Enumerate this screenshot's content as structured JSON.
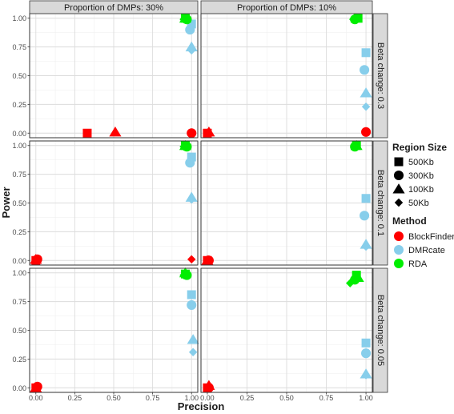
{
  "chart_data": {
    "type": "scatter",
    "facet_columns": [
      "Proportion of DMPs: 30%",
      "Proportion of DMPs: 10%"
    ],
    "facet_rows": [
      "Beta change: 0.3",
      "Beta change: 0.1",
      "Beta change: 0.05"
    ],
    "xlabel": "Precision",
    "ylabel": "Power",
    "xlim": [
      -0.04,
      1.04
    ],
    "ylim": [
      -0.04,
      1.04
    ],
    "x_ticks": [
      "0.00",
      "0.25",
      "0.50",
      "0.75",
      "1.00"
    ],
    "y_ticks": [
      "0.00",
      "0.25",
      "0.50",
      "0.75",
      "1.00"
    ],
    "grid": true,
    "legend_position": "right",
    "legend": {
      "size_title": "Region Size",
      "sizes": [
        {
          "label": "500Kb",
          "shape": "square"
        },
        {
          "label": "300Kb",
          "shape": "circle"
        },
        {
          "label": "100Kb",
          "shape": "triangle"
        },
        {
          "label": "50Kb",
          "shape": "diamond"
        }
      ],
      "method_title": "Method",
      "methods": [
        {
          "label": "BlockFinder",
          "color": "#ff0000"
        },
        {
          "label": "DMRcate",
          "color": "#87ceeb"
        },
        {
          "label": "RDA",
          "color": "#00ee00"
        }
      ]
    },
    "points": [
      {
        "panel": [
          0,
          0
        ],
        "method": "BlockFinder",
        "size": "500Kb",
        "x": 0.33,
        "y": 0.0
      },
      {
        "panel": [
          0,
          0
        ],
        "method": "BlockFinder",
        "size": "100Kb",
        "x": 0.51,
        "y": 0.01
      },
      {
        "panel": [
          0,
          0
        ],
        "method": "BlockFinder",
        "size": "300Kb",
        "x": 1.0,
        "y": 0.0
      },
      {
        "panel": [
          0,
          0
        ],
        "method": "BlockFinder",
        "size": "50Kb",
        "x": 1.0,
        "y": 0.0
      },
      {
        "panel": [
          0,
          0
        ],
        "method": "DMRcate",
        "size": "500Kb",
        "x": 1.0,
        "y": 0.95
      },
      {
        "panel": [
          0,
          0
        ],
        "method": "DMRcate",
        "size": "300Kb",
        "x": 0.99,
        "y": 0.9
      },
      {
        "panel": [
          0,
          0
        ],
        "method": "DMRcate",
        "size": "100Kb",
        "x": 1.0,
        "y": 0.75
      },
      {
        "panel": [
          0,
          0
        ],
        "method": "DMRcate",
        "size": "50Kb",
        "x": 1.0,
        "y": 0.72
      },
      {
        "panel": [
          0,
          0
        ],
        "method": "RDA",
        "size": "500Kb",
        "x": 0.96,
        "y": 1.0
      },
      {
        "panel": [
          0,
          0
        ],
        "method": "RDA",
        "size": "300Kb",
        "x": 0.97,
        "y": 0.99
      },
      {
        "panel": [
          0,
          0
        ],
        "method": "RDA",
        "size": "100Kb",
        "x": 0.96,
        "y": 1.0
      },
      {
        "panel": [
          0,
          0
        ],
        "method": "RDA",
        "size": "50Kb",
        "x": 0.95,
        "y": 0.99
      },
      {
        "panel": [
          0,
          1
        ],
        "method": "BlockFinder",
        "size": "500Kb",
        "x": 0.0,
        "y": 0.0
      },
      {
        "panel": [
          0,
          1
        ],
        "method": "BlockFinder",
        "size": "100Kb",
        "x": 0.01,
        "y": 0.01
      },
      {
        "panel": [
          0,
          1
        ],
        "method": "BlockFinder",
        "size": "50Kb",
        "x": 0.0,
        "y": 0.0
      },
      {
        "panel": [
          0,
          1
        ],
        "method": "BlockFinder",
        "size": "300Kb",
        "x": 1.0,
        "y": 0.01
      },
      {
        "panel": [
          0,
          1
        ],
        "method": "DMRcate",
        "size": "500Kb",
        "x": 1.0,
        "y": 0.7
      },
      {
        "panel": [
          0,
          1
        ],
        "method": "DMRcate",
        "size": "300Kb",
        "x": 0.99,
        "y": 0.55
      },
      {
        "panel": [
          0,
          1
        ],
        "method": "DMRcate",
        "size": "100Kb",
        "x": 1.0,
        "y": 0.35
      },
      {
        "panel": [
          0,
          1
        ],
        "method": "DMRcate",
        "size": "50Kb",
        "x": 1.0,
        "y": 0.23
      },
      {
        "panel": [
          0,
          1
        ],
        "method": "RDA",
        "size": "500Kb",
        "x": 0.95,
        "y": 1.0
      },
      {
        "panel": [
          0,
          1
        ],
        "method": "RDA",
        "size": "300Kb",
        "x": 0.93,
        "y": 0.99
      },
      {
        "panel": [
          0,
          1
        ],
        "method": "RDA",
        "size": "100Kb",
        "x": 0.94,
        "y": 1.0
      },
      {
        "panel": [
          0,
          1
        ],
        "method": "RDA",
        "size": "50Kb",
        "x": 0.92,
        "y": 0.99
      },
      {
        "panel": [
          1,
          0
        ],
        "method": "BlockFinder",
        "size": "500Kb",
        "x": 0.0,
        "y": 0.0
      },
      {
        "panel": [
          1,
          0
        ],
        "method": "BlockFinder",
        "size": "300Kb",
        "x": 0.01,
        "y": 0.01
      },
      {
        "panel": [
          1,
          0
        ],
        "method": "BlockFinder",
        "size": "100Kb",
        "x": 0.0,
        "y": 0.01
      },
      {
        "panel": [
          1,
          0
        ],
        "method": "BlockFinder",
        "size": "50Kb",
        "x": 1.0,
        "y": 0.01
      },
      {
        "panel": [
          1,
          0
        ],
        "method": "DMRcate",
        "size": "500Kb",
        "x": 1.0,
        "y": 0.9
      },
      {
        "panel": [
          1,
          0
        ],
        "method": "DMRcate",
        "size": "300Kb",
        "x": 0.99,
        "y": 0.85
      },
      {
        "panel": [
          1,
          0
        ],
        "method": "DMRcate",
        "size": "100Kb",
        "x": 1.0,
        "y": 0.55
      },
      {
        "panel": [
          1,
          0
        ],
        "method": "DMRcate",
        "size": "50Kb",
        "x": 1.0,
        "y": 0.53
      },
      {
        "panel": [
          1,
          0
        ],
        "method": "RDA",
        "size": "500Kb",
        "x": 0.96,
        "y": 1.0
      },
      {
        "panel": [
          1,
          0
        ],
        "method": "RDA",
        "size": "300Kb",
        "x": 0.97,
        "y": 0.99
      },
      {
        "panel": [
          1,
          0
        ],
        "method": "RDA",
        "size": "100Kb",
        "x": 0.96,
        "y": 1.0
      },
      {
        "panel": [
          1,
          0
        ],
        "method": "RDA",
        "size": "50Kb",
        "x": 0.95,
        "y": 0.99
      },
      {
        "panel": [
          1,
          1
        ],
        "method": "BlockFinder",
        "size": "500Kb",
        "x": 0.0,
        "y": 0.0
      },
      {
        "panel": [
          1,
          1
        ],
        "method": "BlockFinder",
        "size": "300Kb",
        "x": 0.01,
        "y": 0.0
      },
      {
        "panel": [
          1,
          1
        ],
        "method": "BlockFinder",
        "size": "100Kb",
        "x": 0.0,
        "y": 0.0
      },
      {
        "panel": [
          1,
          1
        ],
        "method": "BlockFinder",
        "size": "50Kb",
        "x": 0.01,
        "y": 0.01
      },
      {
        "panel": [
          1,
          1
        ],
        "method": "DMRcate",
        "size": "500Kb",
        "x": 1.0,
        "y": 0.54
      },
      {
        "panel": [
          1,
          1
        ],
        "method": "DMRcate",
        "size": "300Kb",
        "x": 0.99,
        "y": 0.39
      },
      {
        "panel": [
          1,
          1
        ],
        "method": "DMRcate",
        "size": "100Kb",
        "x": 1.0,
        "y": 0.14
      },
      {
        "panel": [
          1,
          1
        ],
        "method": "DMRcate",
        "size": "50Kb",
        "x": 1.0,
        "y": 0.12
      },
      {
        "panel": [
          1,
          1
        ],
        "method": "RDA",
        "size": "500Kb",
        "x": 0.94,
        "y": 1.0
      },
      {
        "panel": [
          1,
          1
        ],
        "method": "RDA",
        "size": "300Kb",
        "x": 0.93,
        "y": 0.99
      },
      {
        "panel": [
          1,
          1
        ],
        "method": "RDA",
        "size": "100Kb",
        "x": 0.94,
        "y": 1.0
      },
      {
        "panel": [
          1,
          1
        ],
        "method": "RDA",
        "size": "50Kb",
        "x": 0.93,
        "y": 0.99
      },
      {
        "panel": [
          2,
          0
        ],
        "method": "BlockFinder",
        "size": "500Kb",
        "x": 0.0,
        "y": 0.0
      },
      {
        "panel": [
          2,
          0
        ],
        "method": "BlockFinder",
        "size": "300Kb",
        "x": 0.01,
        "y": 0.01
      },
      {
        "panel": [
          2,
          0
        ],
        "method": "BlockFinder",
        "size": "100Kb",
        "x": 0.0,
        "y": 0.0
      },
      {
        "panel": [
          2,
          0
        ],
        "method": "BlockFinder",
        "size": "50Kb",
        "x": 0.01,
        "y": 0.0
      },
      {
        "panel": [
          2,
          0
        ],
        "method": "DMRcate",
        "size": "500Kb",
        "x": 1.0,
        "y": 0.81
      },
      {
        "panel": [
          2,
          0
        ],
        "method": "DMRcate",
        "size": "300Kb",
        "x": 1.0,
        "y": 0.72
      },
      {
        "panel": [
          2,
          0
        ],
        "method": "DMRcate",
        "size": "100Kb",
        "x": 1.01,
        "y": 0.42
      },
      {
        "panel": [
          2,
          0
        ],
        "method": "DMRcate",
        "size": "50Kb",
        "x": 1.01,
        "y": 0.31
      },
      {
        "panel": [
          2,
          0
        ],
        "method": "RDA",
        "size": "500Kb",
        "x": 0.96,
        "y": 0.99
      },
      {
        "panel": [
          2,
          0
        ],
        "method": "RDA",
        "size": "300Kb",
        "x": 0.97,
        "y": 0.98
      },
      {
        "panel": [
          2,
          0
        ],
        "method": "RDA",
        "size": "100Kb",
        "x": 0.96,
        "y": 1.0
      },
      {
        "panel": [
          2,
          0
        ],
        "method": "RDA",
        "size": "50Kb",
        "x": 0.95,
        "y": 0.98
      },
      {
        "panel": [
          2,
          1
        ],
        "method": "BlockFinder",
        "size": "500Kb",
        "x": 0.0,
        "y": 0.0
      },
      {
        "panel": [
          2,
          1
        ],
        "method": "BlockFinder",
        "size": "300Kb",
        "x": 0.01,
        "y": 0.0
      },
      {
        "panel": [
          2,
          1
        ],
        "method": "BlockFinder",
        "size": "100Kb",
        "x": 0.01,
        "y": 0.02
      },
      {
        "panel": [
          2,
          1
        ],
        "method": "BlockFinder",
        "size": "50Kb",
        "x": 0.0,
        "y": 0.0
      },
      {
        "panel": [
          2,
          1
        ],
        "method": "DMRcate",
        "size": "500Kb",
        "x": 1.0,
        "y": 0.39
      },
      {
        "panel": [
          2,
          1
        ],
        "method": "DMRcate",
        "size": "300Kb",
        "x": 1.0,
        "y": 0.3
      },
      {
        "panel": [
          2,
          1
        ],
        "method": "DMRcate",
        "size": "100Kb",
        "x": 1.0,
        "y": 0.12
      },
      {
        "panel": [
          2,
          1
        ],
        "method": "DMRcate",
        "size": "50Kb",
        "x": 1.0,
        "y": 0.11
      },
      {
        "panel": [
          2,
          1
        ],
        "method": "RDA",
        "size": "500Kb",
        "x": 0.94,
        "y": 0.98
      },
      {
        "panel": [
          2,
          1
        ],
        "method": "RDA",
        "size": "300Kb",
        "x": 0.93,
        "y": 0.94
      },
      {
        "panel": [
          2,
          1
        ],
        "method": "RDA",
        "size": "100Kb",
        "x": 0.95,
        "y": 0.96
      },
      {
        "panel": [
          2,
          1
        ],
        "method": "RDA",
        "size": "50Kb",
        "x": 0.9,
        "y": 0.91
      }
    ]
  }
}
